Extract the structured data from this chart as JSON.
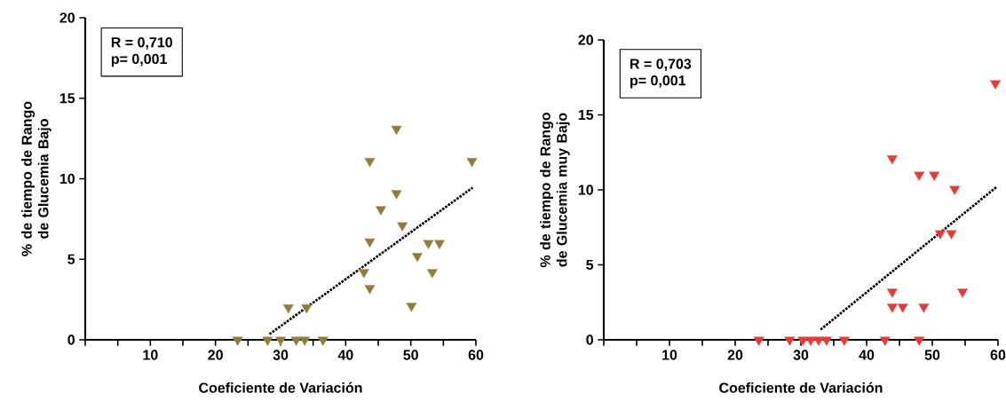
{
  "chart_data": [
    {
      "type": "scatter",
      "xlabel": "Coeficiente de Variación",
      "ylabel": "% de tiempo de Rango de Glucemia Bajo",
      "annotations": [
        "R = 0,710",
        "p= 0,001"
      ],
      "xlim": [
        0,
        60
      ],
      "ylim": [
        0,
        20
      ],
      "xticks": [
        {
          "value": 0,
          "label": null
        },
        {
          "value": 5,
          "label": null
        },
        10,
        {
          "value": 15,
          "label": null
        },
        20,
        {
          "value": 25,
          "label": null
        },
        30,
        {
          "value": 35,
          "label": null
        },
        40,
        {
          "value": 45,
          "label": null
        },
        50,
        {
          "value": 55,
          "label": null
        },
        60
      ],
      "yticks": [
        0,
        5,
        10,
        15,
        20
      ],
      "marker": "triangle",
      "series": [
        {
          "color": "#8b7d3a",
          "x": [
            23.4,
            28.0,
            30.0,
            32.4,
            33.7,
            36.5,
            31.2,
            34.0,
            42.8,
            43.7,
            43.7,
            43.7,
            45.4,
            47.8,
            47.8,
            48.7,
            50.1,
            51.0,
            52.7,
            54.4,
            53.3,
            59.4
          ],
          "values": [
            0,
            0,
            0,
            0,
            0,
            0,
            2.0,
            2.0,
            4.2,
            3.2,
            6.1,
            11.1,
            8.1,
            13.1,
            9.1,
            7.1,
            2.1,
            5.2,
            6.0,
            6.0,
            4.2,
            11.1
          ]
        },
        {
          "type": "line",
          "color": "#000000",
          "line_style": "dotted",
          "marker": "none",
          "x": [
            28.3,
            59.5
          ],
          "values": [
            0.35,
            9.45
          ]
        }
      ]
    },
    {
      "type": "scatter",
      "xlabel": "Coeficiente de Variación",
      "ylabel": "% de tiempo de Rango de Glucemia muy Bajo",
      "annotations": [
        "R = 0,703",
        "p= 0,001"
      ],
      "xlim": [
        0,
        60
      ],
      "ylim": [
        0,
        20
      ],
      "xticks": [
        {
          "value": 0,
          "label": null
        },
        {
          "value": 5,
          "label": null
        },
        10,
        {
          "value": 15,
          "label": null
        },
        20,
        {
          "value": 25,
          "label": null
        },
        30,
        {
          "value": 35,
          "label": null
        },
        40,
        {
          "value": 45,
          "label": null
        },
        50,
        {
          "value": 55,
          "label": null
        },
        60
      ],
      "yticks": [
        0,
        5,
        10,
        15,
        20
      ],
      "marker": "triangle",
      "series": [
        {
          "color": "#e53935",
          "x": [
            23.6,
            28.3,
            30.3,
            31.5,
            32.7,
            33.9,
            36.6,
            42.8,
            48.0,
            43.9,
            48.0,
            50.3,
            53.4,
            51.2,
            52.9,
            43.9,
            43.9,
            45.5,
            48.7,
            54.6,
            59.6
          ],
          "values": [
            0,
            0,
            0,
            0,
            0,
            0,
            0,
            0,
            0,
            12.1,
            11.0,
            11.0,
            10.05,
            7.1,
            7.1,
            3.2,
            2.2,
            2.2,
            2.2,
            3.2,
            17.1
          ]
        },
        {
          "type": "line",
          "color": "#000000",
          "line_style": "dotted",
          "marker": "none",
          "x": [
            33.0,
            59.8
          ],
          "values": [
            0.68,
            10.2
          ]
        }
      ]
    }
  ]
}
